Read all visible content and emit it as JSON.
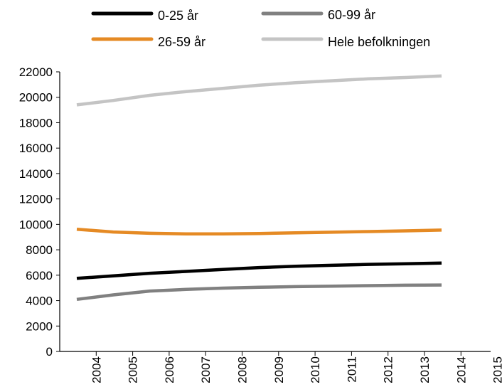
{
  "chart_data": {
    "type": "line",
    "x": [
      "2004",
      "2005",
      "2006",
      "2007",
      "2008",
      "2009",
      "2010",
      "2011",
      "2012",
      "2013",
      "2014"
    ],
    "x_ticks": [
      "2004",
      "2005",
      "2006",
      "2007",
      "2008",
      "2009",
      "2010",
      "2011",
      "2012",
      "2013",
      "2014",
      "2015"
    ],
    "series": [
      {
        "name": "0-25 år",
        "color": "#000000",
        "values": [
          5750,
          5950,
          6150,
          6300,
          6450,
          6600,
          6700,
          6780,
          6850,
          6900,
          6960
        ]
      },
      {
        "name": "26-59 år",
        "color": "#e58a24",
        "values": [
          9620,
          9400,
          9300,
          9250,
          9250,
          9280,
          9330,
          9380,
          9430,
          9490,
          9550
        ]
      },
      {
        "name": "60-99 år",
        "color": "#808080",
        "values": [
          4100,
          4450,
          4750,
          4880,
          4980,
          5050,
          5100,
          5140,
          5180,
          5210,
          5230
        ]
      },
      {
        "name": "Hele befolkningen",
        "color": "#c4c4c4",
        "values": [
          19400,
          19750,
          20150,
          20450,
          20700,
          20950,
          21150,
          21300,
          21450,
          21550,
          21680
        ]
      }
    ],
    "ylim": [
      0,
      22000
    ],
    "y_ticks": [
      "0",
      "2000",
      "4000",
      "6000",
      "8000",
      "10000",
      "12000",
      "14000",
      "16000",
      "18000",
      "20000",
      "22000"
    ],
    "grid": false,
    "legend_position": "top",
    "title": "",
    "xlabel": "",
    "ylabel": ""
  }
}
